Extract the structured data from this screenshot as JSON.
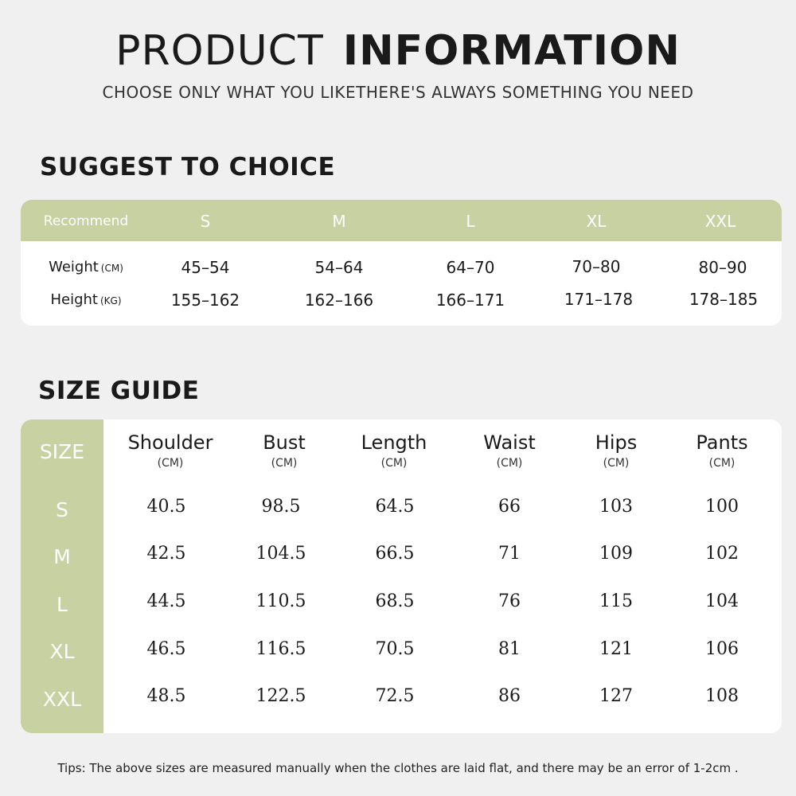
{
  "header": {
    "title_light": "PRODUCT",
    "title_bold": "INFORMATION",
    "subtitle": "CHOOSE ONLY WHAT YOU LIKETHERE'S ALWAYS SOMETHING YOU NEED"
  },
  "suggest": {
    "heading": "SUGGEST TO CHOICE",
    "recommend_label": "Recommend",
    "sizes": [
      "S",
      "M",
      "L",
      "XL",
      "XXL"
    ],
    "weight_label": "Weight",
    "weight_unit": "(CM)",
    "height_label": "Height",
    "height_unit": "(KG)",
    "weight": [
      "45–54",
      "54–64",
      "64–70",
      "70–80",
      "80–90"
    ],
    "height": [
      "155–162",
      "162–166",
      "166–171",
      "171–178",
      "178–185"
    ]
  },
  "size_guide": {
    "heading": "SIZE GUIDE",
    "size_label": "SIZE",
    "columns": [
      {
        "name": "Shoulder",
        "unit": "(CM)"
      },
      {
        "name": "Bust",
        "unit": "(CM)"
      },
      {
        "name": "Length",
        "unit": "(CM)"
      },
      {
        "name": "Waist",
        "unit": "(CM)"
      },
      {
        "name": "Hips",
        "unit": "(CM)"
      },
      {
        "name": "Pants",
        "unit": "(CM)"
      }
    ],
    "rows": [
      {
        "size": "S",
        "values": [
          "40.5",
          "98.5",
          "64.5",
          "66",
          "103",
          "100"
        ]
      },
      {
        "size": "M",
        "values": [
          "42.5",
          "104.5",
          "66.5",
          "71",
          "109",
          "102"
        ]
      },
      {
        "size": "L",
        "values": [
          "44.5",
          "110.5",
          "68.5",
          "76",
          "115",
          "104"
        ]
      },
      {
        "size": "XL",
        "values": [
          "46.5",
          "116.5",
          "70.5",
          "81",
          "121",
          "106"
        ]
      },
      {
        "size": "XXL",
        "values": [
          "48.5",
          "122.5",
          "72.5",
          "86",
          "127",
          "108"
        ]
      }
    ]
  },
  "tips": "Tips: The above sizes are measured manually when the clothes are laid flat, and there may be an error of 1-2cm .",
  "colors": {
    "accent": "#c7d1a1",
    "background": "#f0f0f0",
    "card": "#ffffff"
  }
}
